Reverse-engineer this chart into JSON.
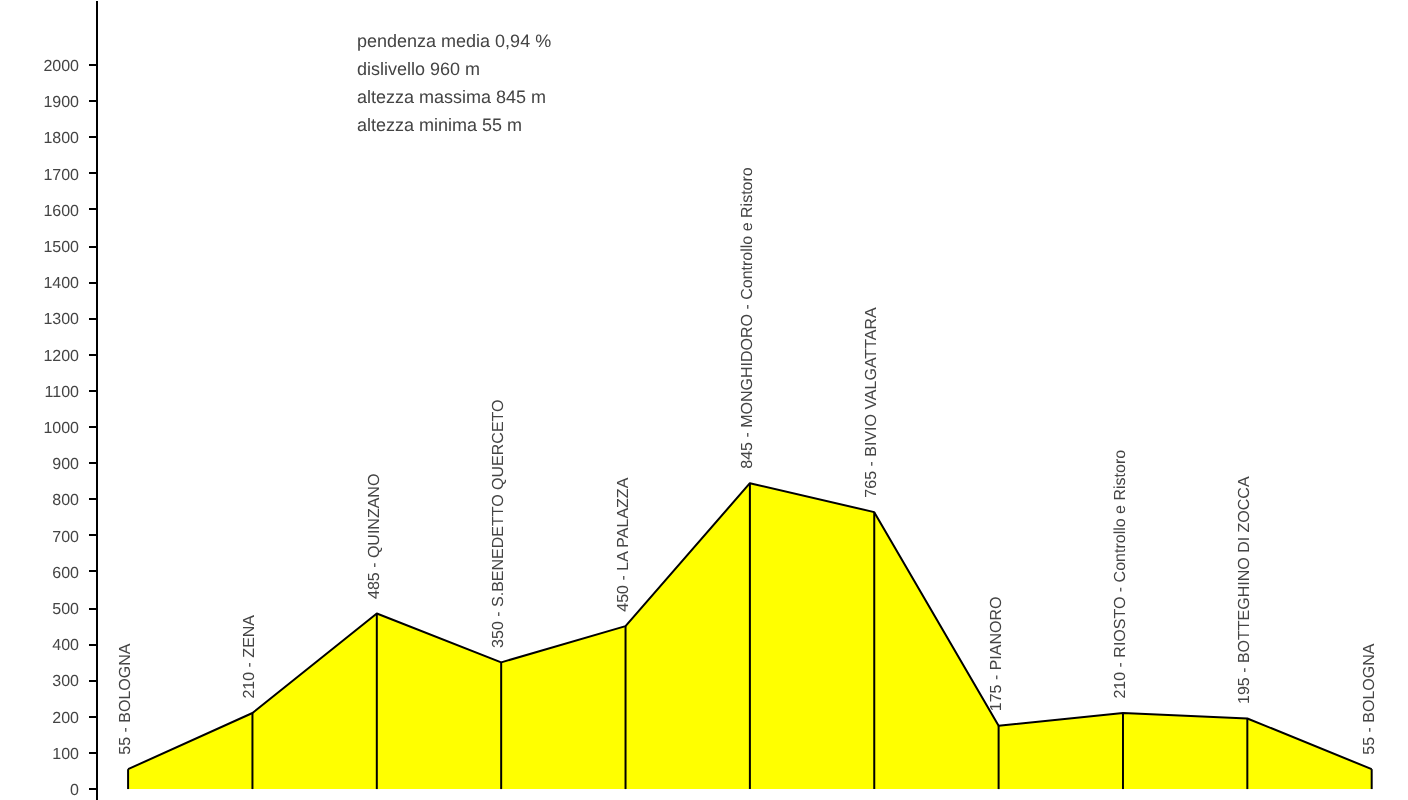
{
  "chart_data": {
    "type": "area",
    "tick_labels": "y",
    "grid": false,
    "categories": [
      null,
      null,
      null,
      null,
      null,
      null,
      null,
      null,
      null,
      null,
      null
    ],
    "ylim": [
      -33,
      2177
    ],
    "yticks": [
      0,
      100,
      200,
      300,
      400,
      500,
      600,
      700,
      800,
      900,
      1000,
      1100,
      1200,
      1300,
      1400,
      1500,
      1600,
      1700,
      1800,
      1900,
      2000
    ],
    "series": [
      {
        "color": "#ffff00",
        "values": [
          55,
          210,
          485,
          350,
          450,
          845,
          765,
          175,
          210,
          195,
          55
        ]
      }
    ],
    "annotations": [
      {
        "text": "55 - BOLOGNA",
        "y": 55
      },
      {
        "text": "210 - ZENA",
        "y": 210
      },
      {
        "text": "485 - QUINZANO",
        "y": 485
      },
      {
        "text": "350 - S.BENEDETTO QUERCETO",
        "y": 350
      },
      {
        "text": "450 - LA PALAZZA",
        "y": 450
      },
      {
        "text": "845 - MONGHIDORO - Controllo e Ristoro",
        "y": 845
      },
      {
        "text": "765 - BIVIO VALGATTARA",
        "y": 765
      },
      {
        "text": "175 - PIANORO",
        "y": 175
      },
      {
        "text": "210 - RIOSTO - Controllo e Ristoro",
        "y": 210
      },
      {
        "text": "195 - BOTTEGHINO DI ZOCCA",
        "y": 195
      },
      {
        "text": "55 - BOLOGNA",
        "y": 55
      },
      "pendenza media 0,94 %",
      "dislivello 960 m",
      "altezza massima 845 m",
      "altezza minima 55 m"
    ]
  }
}
